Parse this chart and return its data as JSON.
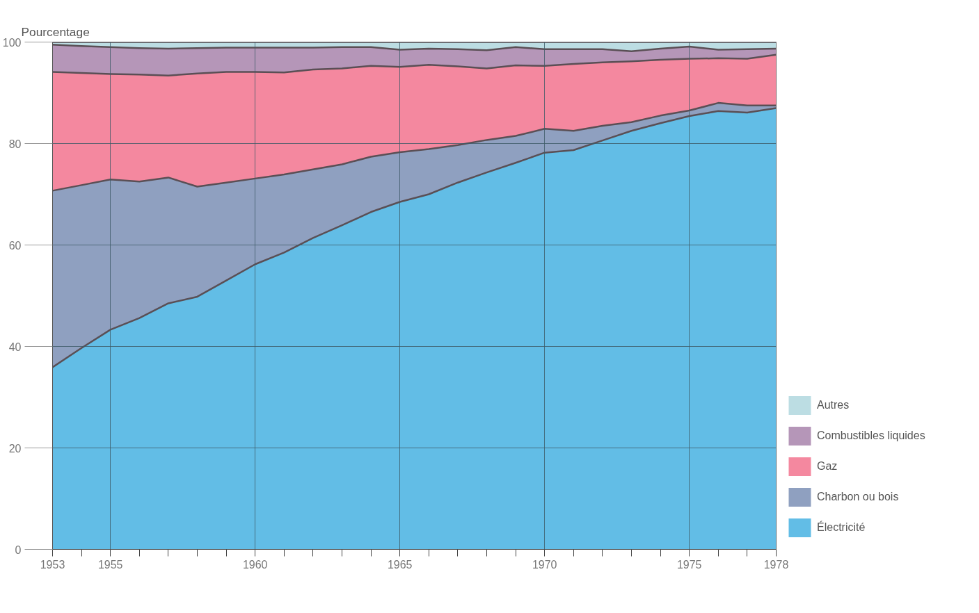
{
  "chart_data": {
    "type": "area",
    "stacked": true,
    "ylabel": "Pourcentage",
    "x": [
      1953,
      1954,
      1955,
      1956,
      1957,
      1958,
      1959,
      1960,
      1961,
      1962,
      1963,
      1964,
      1965,
      1966,
      1967,
      1968,
      1969,
      1970,
      1971,
      1972,
      1973,
      1974,
      1975,
      1976,
      1977,
      1978
    ],
    "series": [
      {
        "name": "Électricité",
        "color": "#62bde6",
        "values": [
          35.9,
          39.7,
          43.3,
          45.6,
          48.5,
          49.8,
          53.0,
          56.2,
          58.5,
          61.4,
          63.9,
          66.5,
          68.5,
          70.0,
          72.3,
          74.3,
          76.2,
          78.2,
          78.7,
          80.6,
          82.5,
          84.0,
          85.4,
          86.4,
          86.1,
          87.0
        ]
      },
      {
        "name": "Charbon ou bois",
        "color": "#8fa0c0",
        "values": [
          34.8,
          32.1,
          29.6,
          26.9,
          24.8,
          21.7,
          19.3,
          16.9,
          15.4,
          13.5,
          12.0,
          10.9,
          9.8,
          8.9,
          7.4,
          6.4,
          5.3,
          4.7,
          3.8,
          2.9,
          1.7,
          1.5,
          1.1,
          1.6,
          1.4,
          0.5
        ]
      },
      {
        "name": "Gaz",
        "color": "#f4889f",
        "values": [
          23.4,
          22.1,
          20.8,
          21.1,
          20.1,
          22.3,
          21.8,
          21.0,
          20.1,
          19.7,
          18.9,
          17.9,
          16.8,
          16.6,
          15.5,
          14.1,
          13.9,
          12.4,
          13.2,
          12.5,
          12.0,
          11.0,
          10.2,
          8.8,
          9.2,
          10.0
        ]
      },
      {
        "name": "Combustibles liquides",
        "color": "#b596b8",
        "values": [
          5.4,
          5.3,
          5.3,
          5.2,
          5.3,
          5.0,
          4.8,
          4.8,
          4.9,
          4.3,
          4.2,
          3.7,
          3.4,
          3.2,
          3.4,
          3.6,
          3.6,
          3.3,
          2.9,
          2.6,
          2.0,
          2.2,
          2.4,
          1.7,
          1.9,
          1.2
        ]
      },
      {
        "name": "Autres",
        "color": "#bcdde3",
        "values": [
          0.5,
          0.8,
          1.0,
          1.2,
          1.3,
          1.2,
          1.1,
          1.1,
          1.1,
          1.1,
          1.0,
          1.0,
          1.5,
          1.3,
          1.4,
          1.6,
          1.0,
          1.4,
          1.4,
          1.4,
          1.8,
          1.3,
          0.9,
          1.5,
          1.4,
          1.3
        ]
      }
    ],
    "xlim": [
      1953,
      1978
    ],
    "ylim": [
      0,
      100
    ],
    "xticks": [
      1953,
      {
        "value": 1954,
        "label": null
      },
      1955,
      {
        "value": 1956,
        "label": null
      },
      {
        "value": 1957,
        "label": null
      },
      {
        "value": 1958,
        "label": null
      },
      {
        "value": 1959,
        "label": null
      },
      1960,
      {
        "value": 1961,
        "label": null
      },
      {
        "value": 1962,
        "label": null
      },
      {
        "value": 1963,
        "label": null
      },
      {
        "value": 1964,
        "label": null
      },
      1965,
      {
        "value": 1966,
        "label": null
      },
      {
        "value": 1967,
        "label": null
      },
      {
        "value": 1968,
        "label": null
      },
      {
        "value": 1969,
        "label": null
      },
      1970,
      {
        "value": 1971,
        "label": null
      },
      {
        "value": 1972,
        "label": null
      },
      {
        "value": 1973,
        "label": null
      },
      {
        "value": 1974,
        "label": null
      },
      1975,
      {
        "value": 1976,
        "label": null
      },
      {
        "value": 1977,
        "label": null
      },
      1978
    ],
    "yticks": [
      0,
      20,
      40,
      60,
      80,
      100
    ],
    "grid": true,
    "legend": "right"
  }
}
